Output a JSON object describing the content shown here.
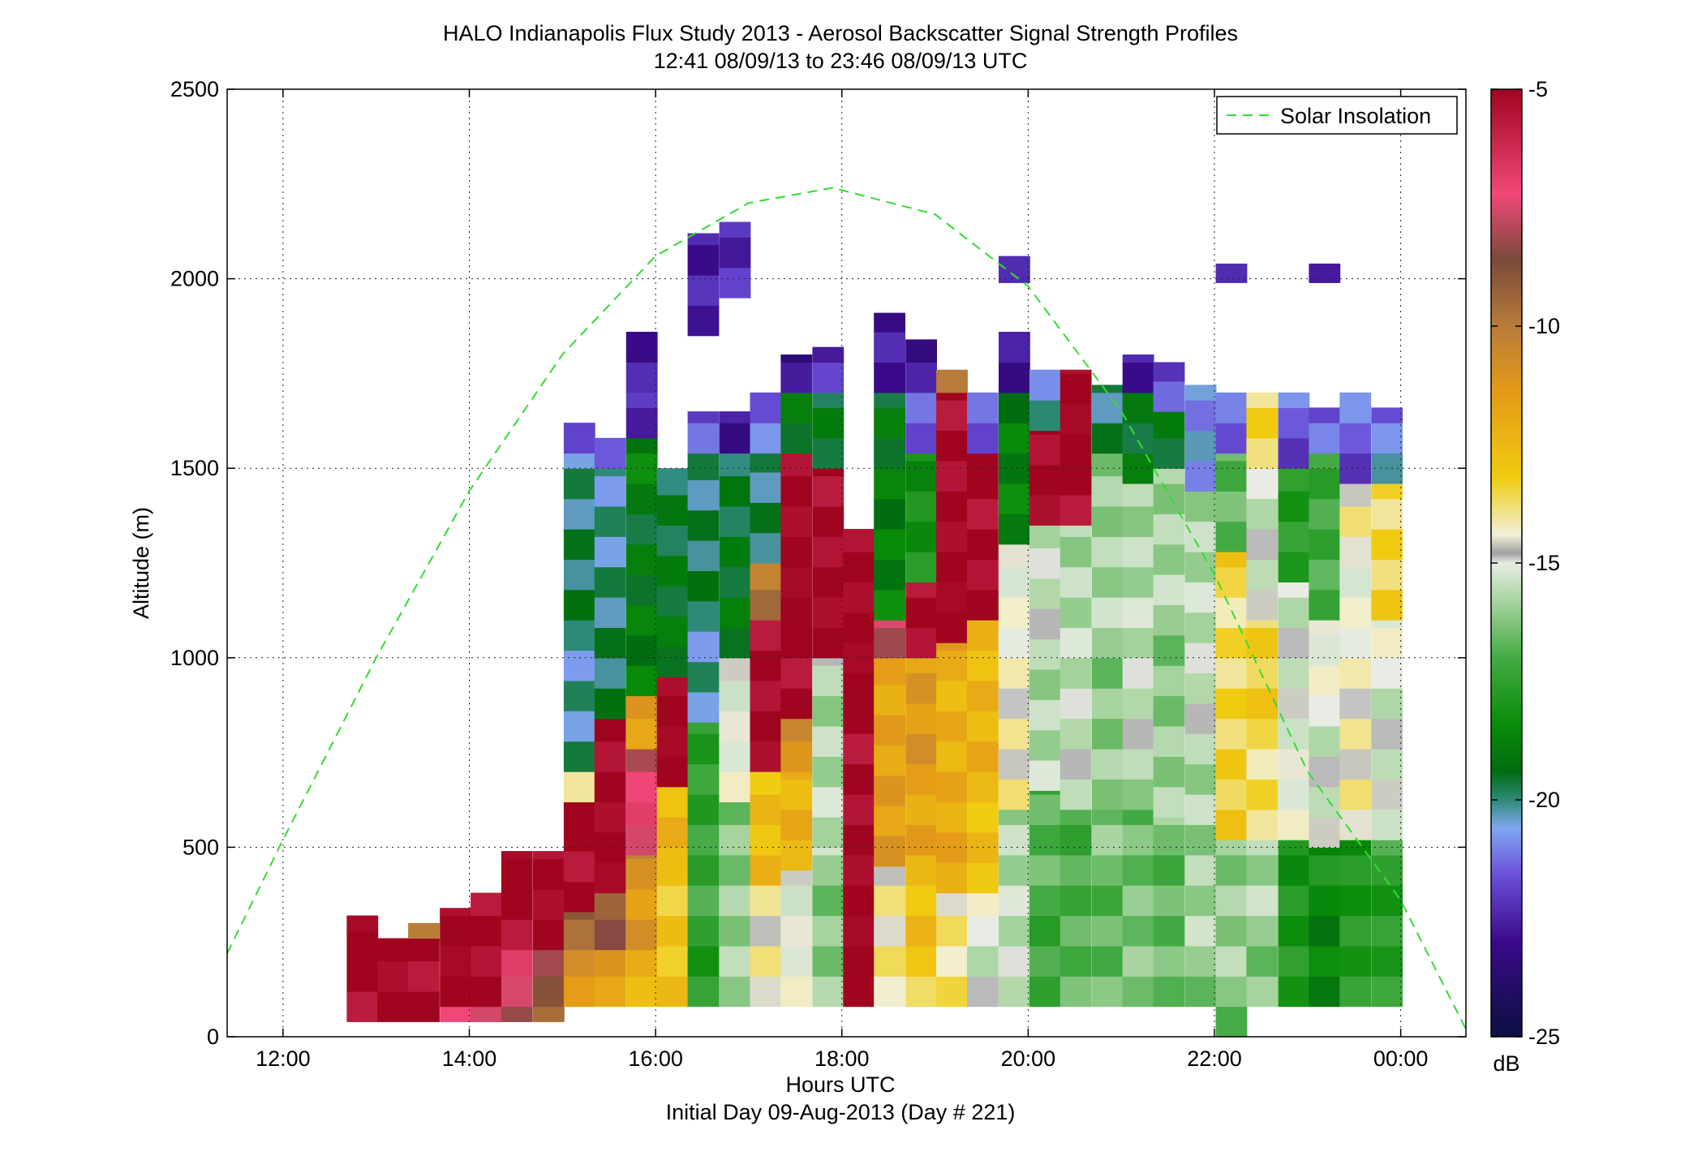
{
  "chart_data": {
    "type": "heatmap",
    "title": "HALO Indianapolis Flux Study 2013 - Aerosol Backscatter Signal Strength Profiles",
    "subtitle": "12:41 08/09/13 to 23:46 08/09/13  UTC",
    "xlabel": "Hours UTC",
    "xlabel2": "Initial Day 09-Aug-2013 (Day # 221)",
    "ylabel": "Altitude (m)",
    "xlim": [
      11.4,
      24.7
    ],
    "ylim": [
      0,
      2500
    ],
    "x_ticks": [
      12,
      14,
      16,
      18,
      20,
      22,
      24
    ],
    "x_tick_labels": [
      "12:00",
      "14:00",
      "16:00",
      "18:00",
      "20:00",
      "22:00",
      "00:00"
    ],
    "y_ticks": [
      0,
      500,
      1000,
      1500,
      2000,
      2500
    ],
    "y_tick_labels": [
      "0",
      "500",
      "1000",
      "1500",
      "2000",
      "2500"
    ],
    "grid": true,
    "legend": {
      "entries": [
        "Solar Insolation"
      ],
      "placement": "top-right"
    },
    "colorbar": {
      "label": "dB",
      "range": [
        -25,
        -5
      ],
      "ticks": [
        -25,
        -20,
        -15,
        -10,
        -5
      ],
      "tick_labels": [
        "-25",
        "-20",
        "-15",
        "-10",
        "-5"
      ]
    },
    "time_bins_start_hour": 12.7,
    "time_bin_hours": 0.333,
    "altitude_bin_m": 80,
    "columns": [
      {
        "t": 12.85,
        "p": [
          [
            40,
            320,
            -5
          ],
          [
            320,
            300,
            -10
          ]
        ]
      },
      {
        "t": 13.18,
        "p": [
          [
            40,
            260,
            -5
          ]
        ]
      },
      {
        "t": 13.51,
        "p": [
          [
            40,
            260,
            -5
          ],
          [
            260,
            300,
            -9.5
          ]
        ]
      },
      {
        "t": 13.85,
        "p": [
          [
            40,
            80,
            -7
          ],
          [
            80,
            340,
            -5
          ]
        ]
      },
      {
        "t": 14.18,
        "p": [
          [
            40,
            80,
            -7
          ],
          [
            80,
            380,
            -5
          ]
        ]
      },
      {
        "t": 14.51,
        "p": [
          [
            40,
            80,
            -9
          ],
          [
            80,
            230,
            -7.5
          ],
          [
            230,
            490,
            -5
          ]
        ]
      },
      {
        "t": 14.85,
        "p": [
          [
            40,
            80,
            -10
          ],
          [
            80,
            230,
            -8.5
          ],
          [
            230,
            490,
            -5
          ]
        ]
      },
      {
        "t": 15.18,
        "p": [
          [
            80,
            230,
            -11.5
          ],
          [
            230,
            330,
            -9
          ],
          [
            330,
            620,
            -5
          ],
          [
            620,
            700,
            -13.5
          ],
          [
            700,
            1540,
            -20
          ],
          [
            1540,
            1620,
            -21.5
          ]
        ]
      },
      {
        "t": 15.51,
        "p": [
          [
            80,
            230,
            -11.5
          ],
          [
            230,
            380,
            -9
          ],
          [
            380,
            840,
            -5
          ],
          [
            840,
            1500,
            -20
          ],
          [
            1500,
            1580,
            -21.5
          ]
        ]
      },
      {
        "t": 15.85,
        "p": [
          [
            80,
            230,
            -12
          ],
          [
            230,
            480,
            -11
          ],
          [
            480,
            620,
            -7
          ],
          [
            620,
            760,
            -7.5
          ],
          [
            760,
            900,
            -11.5
          ],
          [
            900,
            1580,
            -19
          ],
          [
            1580,
            1700,
            -22.5
          ],
          [
            1700,
            1800,
            -23
          ],
          [
            1800,
            1860,
            -23
          ]
        ]
      },
      {
        "t": 16.18,
        "p": [
          [
            80,
            420,
            -13
          ],
          [
            420,
            660,
            -12.5
          ],
          [
            660,
            950,
            -5
          ],
          [
            950,
            1500,
            -19.5
          ]
        ]
      },
      {
        "t": 16.51,
        "p": [
          [
            80,
            830,
            -17.5
          ],
          [
            830,
            1540,
            -20
          ],
          [
            1540,
            1650,
            -21.5
          ],
          [
            1850,
            2120,
            -22.5
          ]
        ]
      },
      {
        "t": 16.85,
        "p": [
          [
            80,
            620,
            -16
          ],
          [
            620,
            1000,
            -15
          ],
          [
            1000,
            1540,
            -19.5
          ],
          [
            1540,
            1650,
            -22.5
          ],
          [
            1950,
            2150,
            -22
          ]
        ]
      },
      {
        "t": 17.18,
        "p": [
          [
            80,
            400,
            -14
          ],
          [
            400,
            700,
            -12.5
          ],
          [
            700,
            1100,
            -5
          ],
          [
            1100,
            1250,
            -10
          ],
          [
            1250,
            1540,
            -20
          ],
          [
            1540,
            1700,
            -21.5
          ]
        ]
      },
      {
        "t": 17.51,
        "p": [
          [
            80,
            440,
            -15
          ],
          [
            440,
            700,
            -12.5
          ],
          [
            700,
            840,
            -10.5
          ],
          [
            840,
            1540,
            -5
          ],
          [
            1540,
            1700,
            -19
          ],
          [
            1700,
            1800,
            -23
          ]
        ]
      },
      {
        "t": 17.85,
        "p": [
          [
            80,
            500,
            -16
          ],
          [
            500,
            1000,
            -15.5
          ],
          [
            1000,
            1500,
            -5
          ],
          [
            1500,
            1700,
            -19.5
          ],
          [
            1700,
            1820,
            -22.5
          ]
        ]
      },
      {
        "t": 18.18,
        "p": [
          [
            80,
            1340,
            -5
          ]
        ]
      },
      {
        "t": 18.51,
        "p": [
          [
            80,
            450,
            -14
          ],
          [
            450,
            1000,
            -11.5
          ],
          [
            1000,
            1100,
            -8
          ],
          [
            1100,
            1700,
            -19
          ],
          [
            1700,
            1910,
            -23
          ]
        ]
      },
      {
        "t": 18.85,
        "p": [
          [
            80,
            480,
            -13
          ],
          [
            480,
            1000,
            -11.5
          ],
          [
            1000,
            1200,
            -5
          ],
          [
            1200,
            1540,
            -18
          ],
          [
            1540,
            1700,
            -21.5
          ],
          [
            1700,
            1840,
            -23
          ]
        ]
      },
      {
        "t": 19.18,
        "p": [
          [
            80,
            380,
            -14
          ],
          [
            380,
            1040,
            -12
          ],
          [
            1040,
            1700,
            -5
          ],
          [
            1700,
            1760,
            -10
          ]
        ]
      },
      {
        "t": 19.51,
        "p": [
          [
            80,
            380,
            -15
          ],
          [
            380,
            1100,
            -12.5
          ],
          [
            1100,
            1540,
            -5
          ],
          [
            1540,
            1700,
            -21.5
          ]
        ]
      },
      {
        "t": 19.85,
        "p": [
          [
            80,
            600,
            -15.5
          ],
          [
            600,
            1300,
            -14.5
          ],
          [
            1300,
            1700,
            -19
          ],
          [
            1700,
            1860,
            -22.5
          ],
          [
            1990,
            2060,
            -22.5
          ]
        ]
      },
      {
        "t": 20.18,
        "p": [
          [
            80,
            650,
            -17
          ],
          [
            650,
            1350,
            -15.5
          ],
          [
            1350,
            1600,
            -5
          ],
          [
            1600,
            1760,
            -20.5
          ]
        ]
      },
      {
        "t": 20.51,
        "p": [
          [
            80,
            600,
            -17
          ],
          [
            600,
            1350,
            -15.5
          ],
          [
            1350,
            1760,
            -5
          ]
        ]
      },
      {
        "t": 20.85,
        "p": [
          [
            80,
            600,
            -16.5
          ],
          [
            600,
            1540,
            -16
          ],
          [
            1540,
            1720,
            -20
          ]
        ]
      },
      {
        "t": 21.18,
        "p": [
          [
            80,
            600,
            -16.5
          ],
          [
            600,
            1460,
            -15.5
          ],
          [
            1460,
            1700,
            -19
          ],
          [
            1700,
            1800,
            -22.5
          ]
        ]
      },
      {
        "t": 21.51,
        "p": [
          [
            80,
            580,
            -16.5
          ],
          [
            580,
            1500,
            -16
          ],
          [
            1500,
            1650,
            -19.5
          ],
          [
            1650,
            1780,
            -22
          ]
        ]
      },
      {
        "t": 21.85,
        "p": [
          [
            80,
            560,
            -16
          ],
          [
            560,
            1440,
            -15.5
          ],
          [
            1440,
            1720,
            -20.5
          ]
        ]
      },
      {
        "t": 22.18,
        "p": [
          [
            0,
            80,
            -17.5
          ],
          [
            80,
            520,
            -16
          ],
          [
            520,
            1280,
            -13.5
          ],
          [
            1280,
            1540,
            -17
          ],
          [
            1540,
            1700,
            -21
          ],
          [
            1990,
            2040,
            -22.5
          ]
        ]
      },
      {
        "t": 22.51,
        "p": [
          [
            80,
            520,
            -16
          ],
          [
            520,
            1100,
            -13.5
          ],
          [
            1100,
            1500,
            -15
          ],
          [
            1500,
            1700,
            -13.5
          ]
        ]
      },
      {
        "t": 22.85,
        "p": [
          [
            80,
            520,
            -18
          ],
          [
            520,
            1200,
            -15
          ],
          [
            1200,
            1500,
            -18
          ],
          [
            1500,
            1700,
            -21.5
          ]
        ]
      },
      {
        "t": 23.18,
        "p": [
          [
            80,
            500,
            -18.5
          ],
          [
            500,
            1100,
            -15
          ],
          [
            1100,
            1540,
            -17
          ],
          [
            1540,
            1660,
            -21.5
          ],
          [
            1990,
            2040,
            -22.5
          ]
        ]
      },
      {
        "t": 23.51,
        "p": [
          [
            80,
            520,
            -18
          ],
          [
            520,
            1460,
            -14.5
          ],
          [
            1460,
            1700,
            -21.5
          ]
        ]
      },
      {
        "t": 23.85,
        "p": [
          [
            80,
            520,
            -17.5
          ],
          [
            520,
            1100,
            -15
          ],
          [
            1100,
            1460,
            -13.5
          ],
          [
            1460,
            1540,
            -20
          ],
          [
            1540,
            1660,
            -21.5
          ]
        ]
      }
    ],
    "solar_insolation": {
      "x": [
        11.4,
        12.0,
        13.0,
        14.0,
        15.0,
        16.0,
        17.0,
        17.9,
        19.0,
        20.0,
        21.0,
        22.0,
        23.0,
        24.0,
        24.7
      ],
      "y": [
        220,
        520,
        1000,
        1440,
        1800,
        2060,
        2200,
        2240,
        2170,
        1980,
        1650,
        1220,
        700,
        360,
        20
      ]
    }
  }
}
